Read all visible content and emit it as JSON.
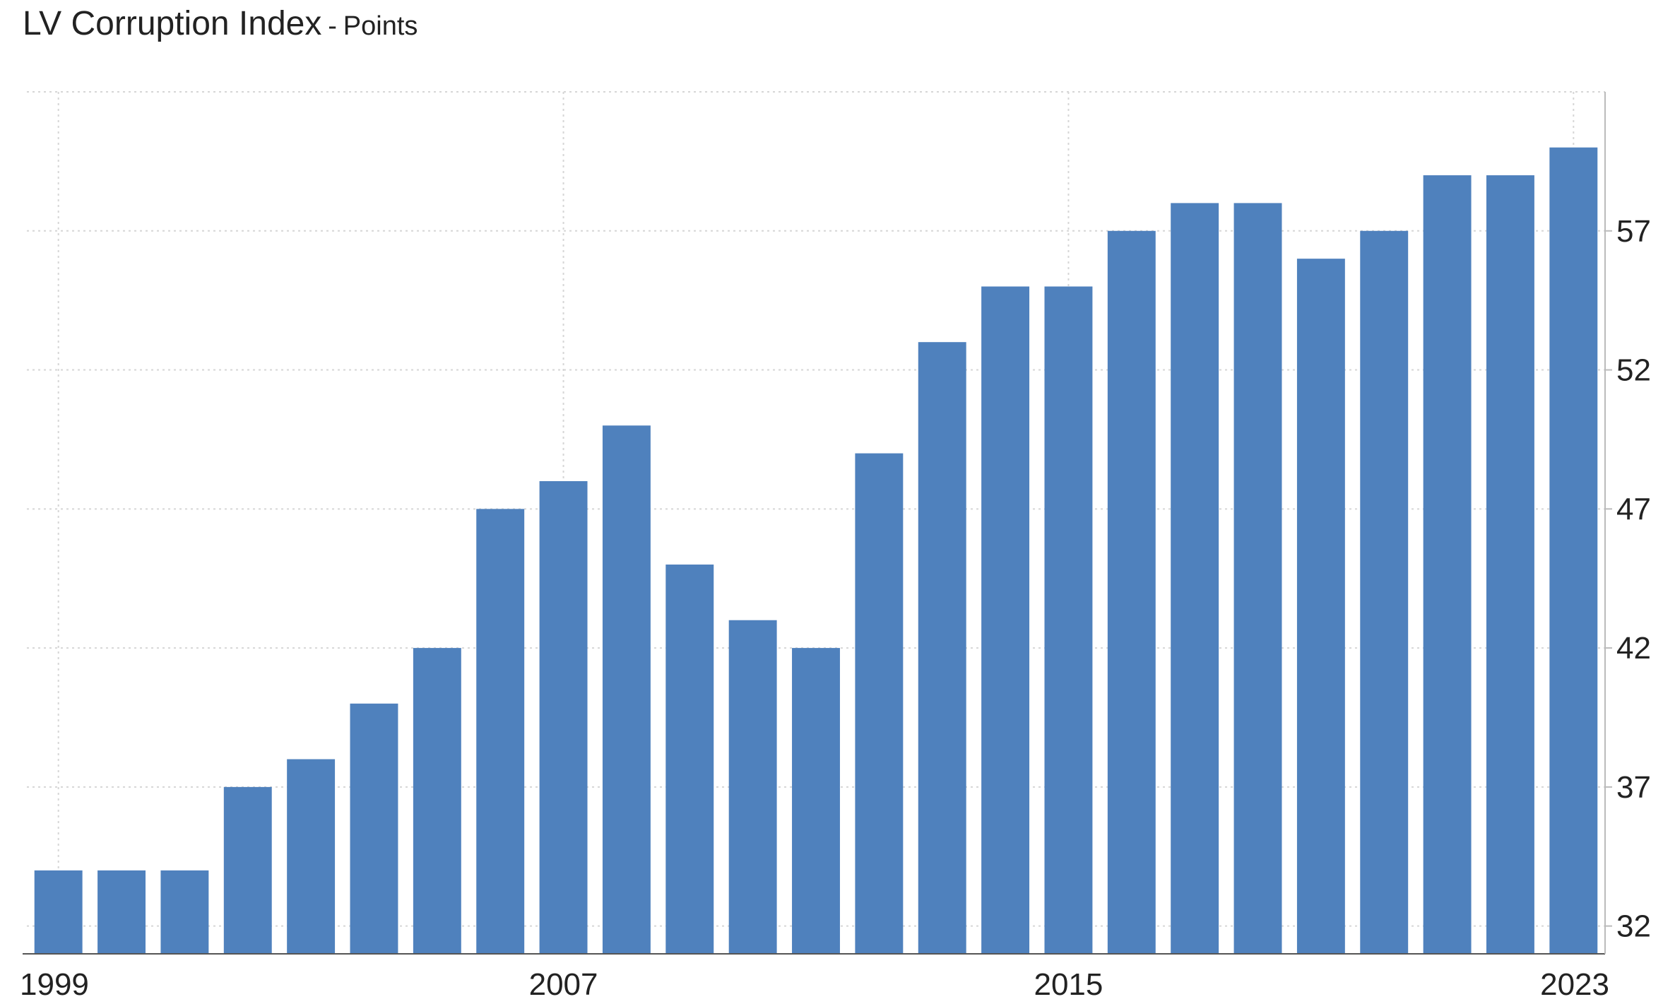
{
  "title": "LV Corruption Index",
  "title_separator": "-",
  "unit": "Points",
  "chart_data": {
    "type": "bar",
    "categories": [
      "1999",
      "2000",
      "2001",
      "2002",
      "2003",
      "2004",
      "2005",
      "2006",
      "2007",
      "2008",
      "2009",
      "2010",
      "2011",
      "2012",
      "2013",
      "2014",
      "2015",
      "2016",
      "2017",
      "2018",
      "2019",
      "2020",
      "2021",
      "2022",
      "2023"
    ],
    "values": [
      34,
      34,
      34,
      37,
      38,
      40,
      42,
      47,
      48,
      50,
      45,
      43,
      42,
      49,
      53,
      55,
      55,
      57,
      58,
      58,
      56,
      57,
      59,
      59,
      60
    ],
    "x_tick_labels": [
      "1999",
      "2007",
      "2015",
      "2023"
    ],
    "y_ticks": [
      32,
      37,
      42,
      47,
      52,
      57
    ],
    "ylim": [
      31,
      62
    ],
    "y_axis_side": "right",
    "grid": true,
    "bar_color": "#4f81bd"
  }
}
